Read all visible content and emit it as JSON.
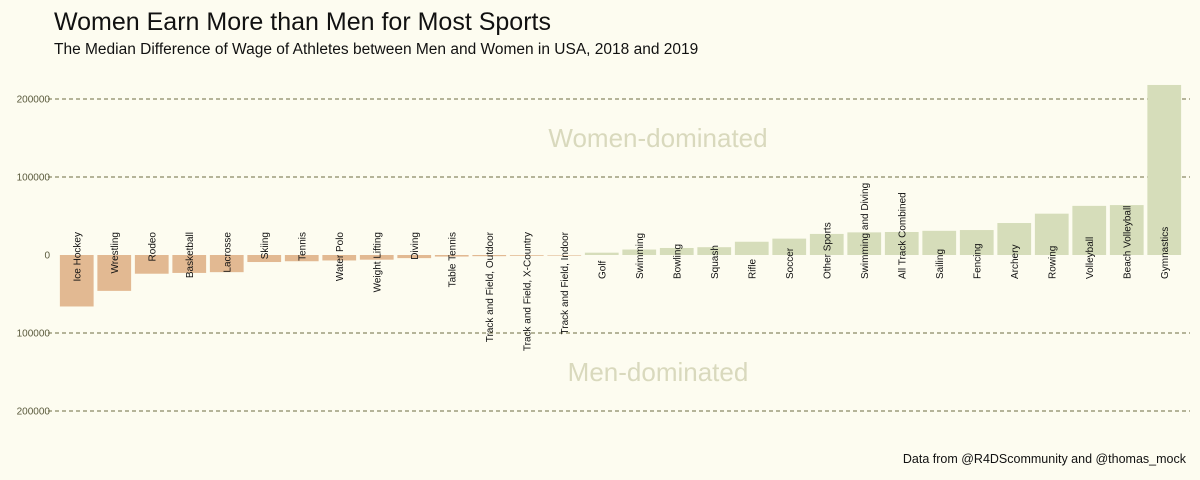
{
  "title": "Women Earn More than Men for Most Sports",
  "subtitle": "The Median Difference of Wage of Athletes between Men and Women in USA, 2018 and 2019",
  "caption": "Data from @R4DScommunity and @thomas_mock",
  "colors": {
    "positive": "#d6ddba",
    "negative": "#e2b992",
    "background": "#fdfcf0",
    "grid": "#6d6d42",
    "region_text": "#d9d9bd"
  },
  "chart_data": {
    "type": "bar",
    "title": "Women Earn More than Men for Most Sports",
    "subtitle": "The Median Difference of Wage of Athletes between Men and Women in USA, 2018 and 2019",
    "xlabel": "",
    "ylabel": "",
    "ylim": [
      -250000,
      225000
    ],
    "yticks": [
      {
        "value": 200000,
        "label": "200000"
      },
      {
        "value": 100000,
        "label": "100000"
      },
      {
        "value": 0,
        "label": "0"
      },
      {
        "value": -100000,
        "label": "100000"
      },
      {
        "value": -200000,
        "label": "200000"
      }
    ],
    "grid": true,
    "annotations": [
      {
        "text": "Women-dominated",
        "x_index": 15.5,
        "y": 150000
      },
      {
        "text": "Men-dominated",
        "x_index": 15.5,
        "y": -150000
      }
    ],
    "categories": [
      "Ice Hockey",
      "Wrestling",
      "Rodeo",
      "Basketball",
      "Lacrosse",
      "Skiing",
      "Tennis",
      "Water Polo",
      "Weight Lifting",
      "Diving",
      "Table Tennis",
      "Track and Field, Outdoor",
      "Track and Field, X-Country",
      "Track and Field, Indoor",
      "Golf",
      "Swimming",
      "Bowling",
      "Squash",
      "Rifle",
      "Soccer",
      "Other Sports",
      "Swimming and Diving",
      "All Track Combined",
      "Sailing",
      "Fencing",
      "Archery",
      "Rowing",
      "Volleyball",
      "Beach Volleyball",
      "Gymnastics"
    ],
    "values": [
      -66000,
      -46000,
      -24000,
      -23000,
      -22000,
      -9000,
      -8000,
      -7000,
      -6000,
      -4000,
      -2000,
      -1500,
      -1000,
      -500,
      3000,
      7000,
      9000,
      10000,
      17000,
      21000,
      27000,
      29000,
      29500,
      31000,
      32000,
      41000,
      53000,
      63000,
      64000,
      218000
    ]
  }
}
